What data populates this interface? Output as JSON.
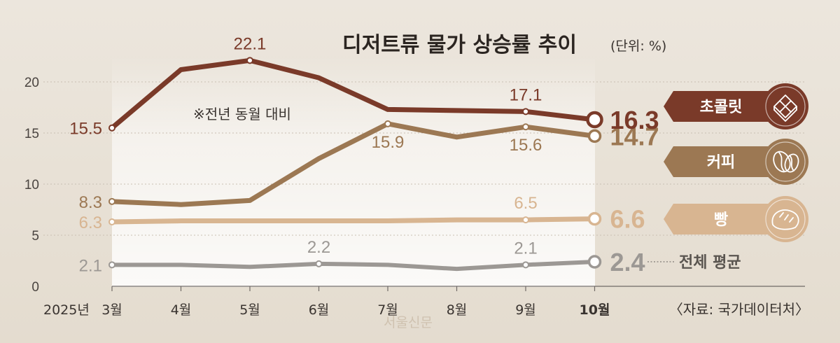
{
  "chart_data": {
    "type": "line",
    "title": "디저트류 물가 상승률 추이",
    "unit": "(단위: %)",
    "note": "※전년 동월 대비",
    "source": "〈자료: 국가데이터처〉",
    "watermark": "서울신문",
    "year_label": "2025년",
    "categories": [
      "3월",
      "4월",
      "5월",
      "6월",
      "7월",
      "8월",
      "9월",
      "10월"
    ],
    "ylim": [
      0,
      22
    ],
    "yticks": [
      0,
      5,
      10,
      15,
      20
    ],
    "ytick_labels": [
      "0",
      "5",
      "10",
      "15",
      "20"
    ],
    "series": [
      {
        "name": "초콜릿",
        "color": "#7a3a29",
        "values": [
          15.5,
          21.2,
          22.1,
          20.4,
          17.3,
          17.2,
          17.1,
          16.3
        ],
        "labels": [
          {
            "index": 0,
            "text": "15.5",
            "pos": "left"
          },
          {
            "index": 2,
            "text": "22.1",
            "pos": "above"
          },
          {
            "index": 6,
            "text": "17.1",
            "pos": "above"
          }
        ],
        "end_label": "16.3",
        "legend": "초콜릿",
        "icon": "chocolate-icon"
      },
      {
        "name": "커피",
        "color": "#9c7853",
        "values": [
          8.3,
          8.0,
          8.4,
          12.5,
          15.9,
          14.6,
          15.6,
          14.7
        ],
        "labels": [
          {
            "index": 0,
            "text": "8.3",
            "pos": "left"
          },
          {
            "index": 4,
            "text": "15.9",
            "pos": "below"
          },
          {
            "index": 6,
            "text": "15.6",
            "pos": "below"
          }
        ],
        "end_label": "14.7",
        "legend": "커피",
        "icon": "coffee-bean-icon"
      },
      {
        "name": "빵",
        "color": "#d8b591",
        "values": [
          6.3,
          6.4,
          6.4,
          6.4,
          6.4,
          6.5,
          6.5,
          6.6
        ],
        "labels": [
          {
            "index": 0,
            "text": "6.3",
            "pos": "left"
          },
          {
            "index": 6,
            "text": "6.5",
            "pos": "above"
          }
        ],
        "end_label": "6.6",
        "legend": "빵",
        "icon": "bread-icon"
      },
      {
        "name": "전체 평균",
        "color": "#9c9894",
        "values": [
          2.1,
          2.1,
          1.9,
          2.2,
          2.1,
          1.7,
          2.1,
          2.4
        ],
        "labels": [
          {
            "index": 0,
            "text": "2.1",
            "pos": "left"
          },
          {
            "index": 3,
            "text": "2.2",
            "pos": "above"
          },
          {
            "index": 6,
            "text": "2.1",
            "pos": "above"
          }
        ],
        "end_label": "2.4",
        "legend": "전체 평균",
        "icon": ""
      }
    ]
  }
}
